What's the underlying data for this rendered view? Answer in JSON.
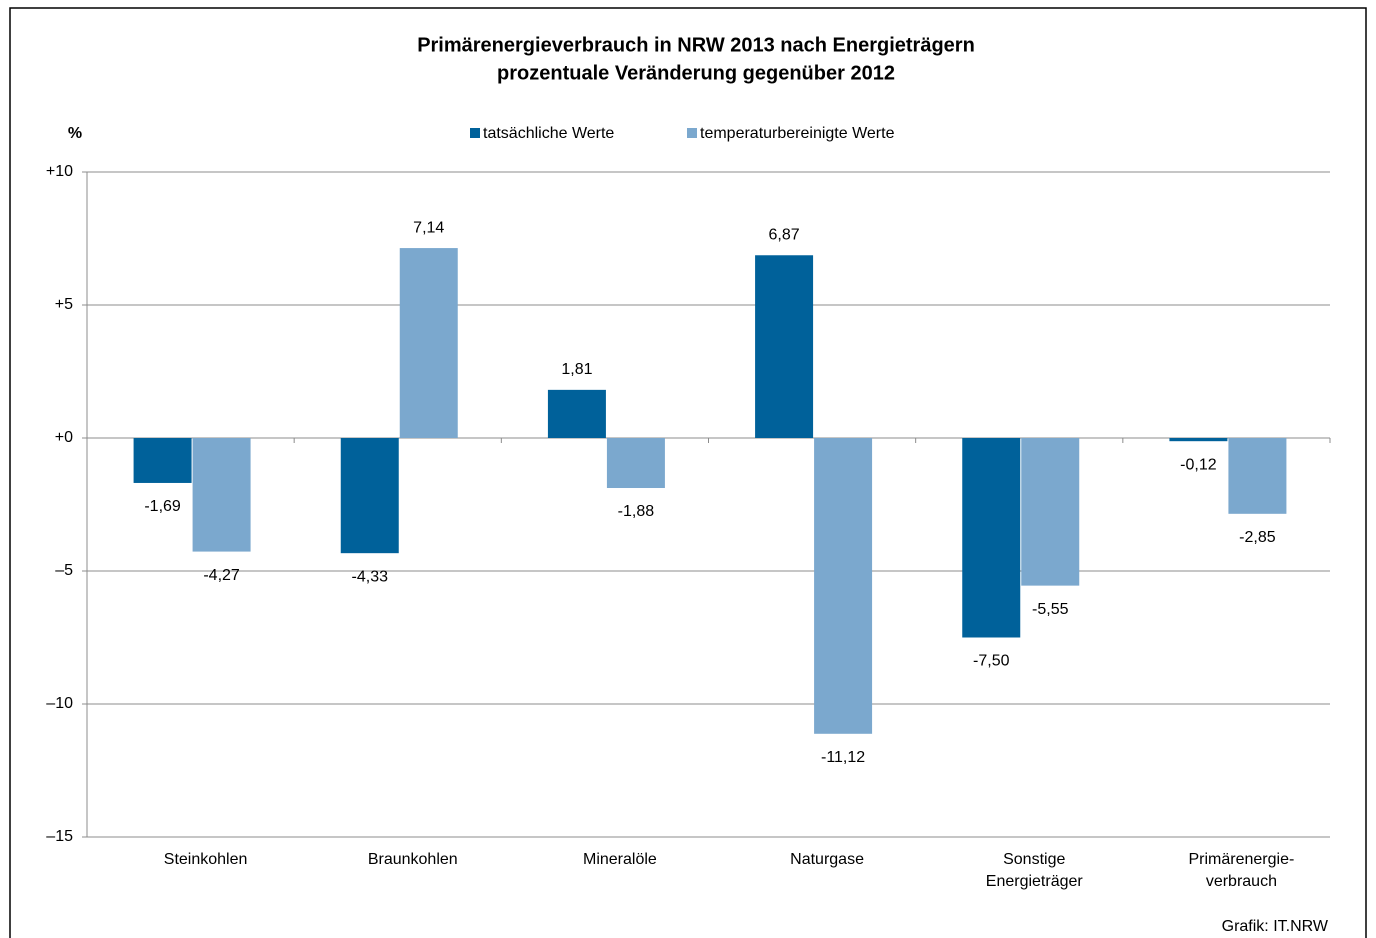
{
  "chart_data": {
    "type": "bar",
    "title": "Primärenergieverbrauch in NRW 2013 nach Energieträgern",
    "subtitle": "prozentuale Veränderung gegenüber 2012",
    "y_label": "%",
    "source": "Grafik: IT.NRW",
    "categories": [
      [
        "Steinkohlen"
      ],
      [
        "Braunkohlen"
      ],
      [
        "Mineralöle"
      ],
      [
        "Naturgase"
      ],
      [
        "Sonstige",
        "Energieträger"
      ],
      [
        "Primärenergie-",
        "verbrauch"
      ]
    ],
    "series": [
      {
        "name": "tatsächliche Werte",
        "color": "#00619a",
        "values": [
          -1.69,
          -4.33,
          1.81,
          6.87,
          -7.5,
          -0.12
        ],
        "value_labels": [
          "-1,69",
          "-4,33",
          "1,81",
          "6,87",
          "-7,50",
          "-0,12"
        ]
      },
      {
        "name": "temperaturbereinigte Werte",
        "color": "#7ba8ce",
        "values": [
          -4.27,
          7.14,
          -1.88,
          -11.12,
          -5.55,
          -2.85
        ],
        "value_labels": [
          "-4,27",
          "7,14",
          "-1,88",
          "-11,12",
          "-5,55",
          "-2,85"
        ]
      }
    ],
    "ylim": [
      -15,
      10
    ],
    "yticks": [
      {
        "value": 10,
        "label": "+10"
      },
      {
        "value": 5,
        "label": "+5"
      },
      {
        "value": 0,
        "label": "+0"
      },
      {
        "value": -5,
        "label": "–5"
      },
      {
        "value": -10,
        "label": "–10"
      },
      {
        "value": -15,
        "label": "–15"
      }
    ],
    "grid": true
  }
}
